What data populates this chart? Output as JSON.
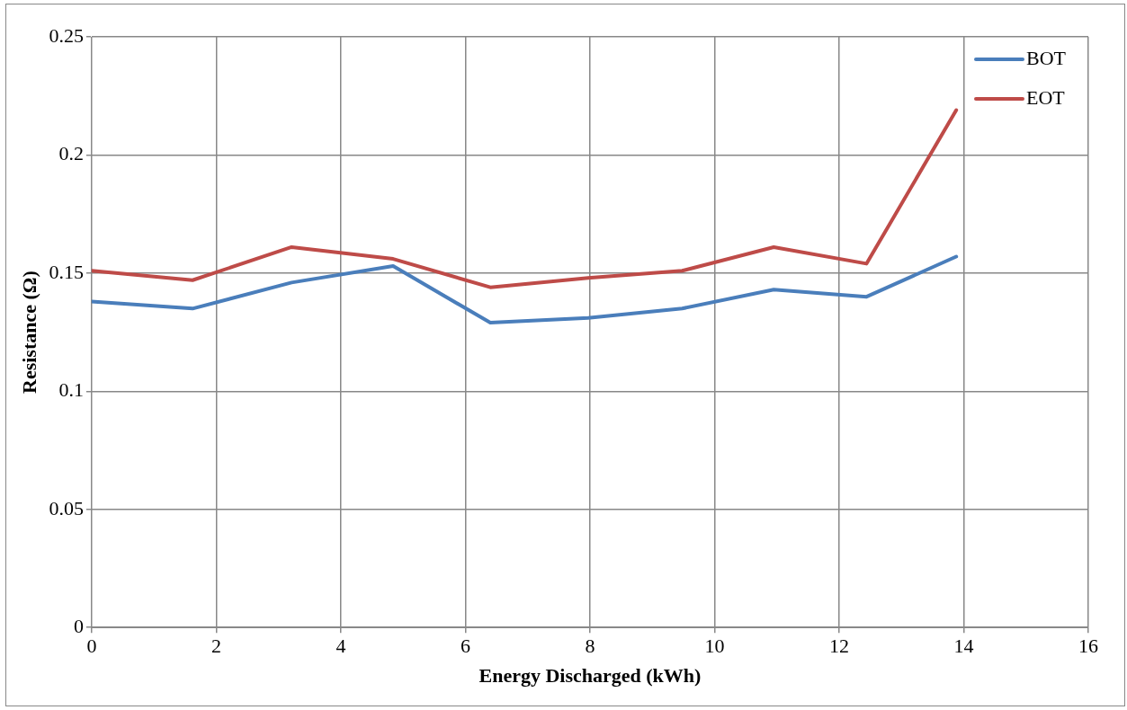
{
  "chart_data": {
    "type": "line",
    "xlabel": "Energy Discharged (kWh)",
    "ylabel": "Resistance (Ω)",
    "x": [
      0,
      1.62,
      3.21,
      4.84,
      6.4,
      7.97,
      9.48,
      10.95,
      12.44,
      13.88
    ],
    "series": [
      {
        "name": "BOT",
        "color": "#4a7ebb",
        "values": [
          0.138,
          0.135,
          0.146,
          0.153,
          0.129,
          0.131,
          0.135,
          0.143,
          0.14,
          0.157
        ]
      },
      {
        "name": "EOT",
        "color": "#be4b48",
        "values": [
          0.151,
          0.147,
          0.161,
          0.156,
          0.144,
          0.148,
          0.151,
          0.161,
          0.154,
          0.219
        ]
      }
    ],
    "xlim": [
      0,
      16
    ],
    "xticks": [
      0,
      2,
      4,
      6,
      8,
      10,
      12,
      14,
      16
    ],
    "ylim": [
      0,
      0.25
    ],
    "yticks": [
      0,
      0.05,
      0.1,
      0.15,
      0.2,
      0.25
    ],
    "grid": true,
    "legend": "top right",
    "marker": "none",
    "line_style": "solid"
  }
}
